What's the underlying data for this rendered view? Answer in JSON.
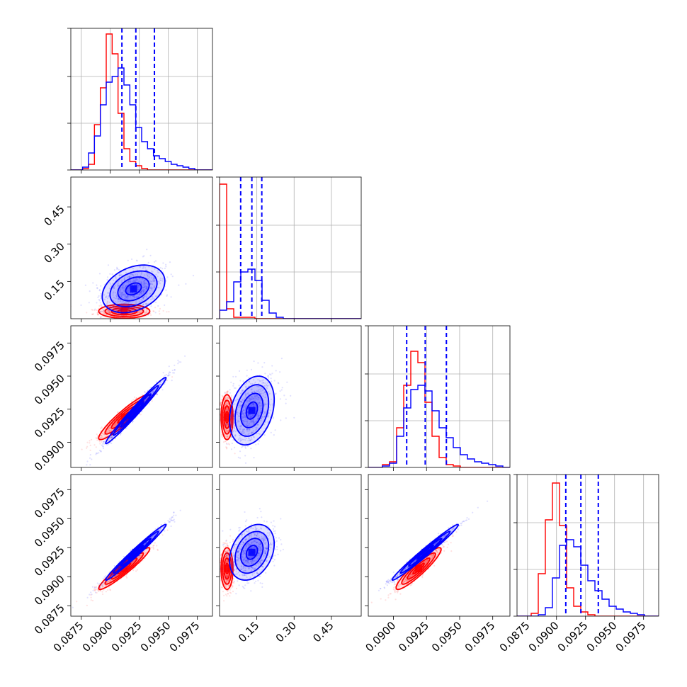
{
  "chart_data": {
    "type": "corner",
    "title": "",
    "grid": true,
    "layout": "4x4 lower-triangular corner plot",
    "colors": {
      "blue": "#0000ff",
      "red": "#ff0000",
      "grid": "#b0b0b0",
      "frame": "#000000"
    },
    "params": [
      {
        "range": [
          0.0866,
          0.0988
        ],
        "ticks": [
          0.0875,
          0.09,
          0.0925,
          0.095,
          0.0975
        ],
        "tick_labels": [
          "0.0875",
          "0.0900",
          "0.0925",
          "0.0950",
          "0.0975"
        ]
      },
      {
        "range": [
          0.0,
          0.57
        ],
        "ticks": [
          0.15,
          0.3,
          0.45
        ],
        "tick_labels": [
          "0.15",
          "0.30",
          "0.45"
        ]
      },
      {
        "range": [
          0.0881,
          0.0988
        ],
        "ticks": [
          0.09,
          0.0925,
          0.095,
          0.0975
        ],
        "tick_labels": [
          "0.0900",
          "0.0925",
          "0.0950",
          "0.0975"
        ]
      },
      {
        "range": [
          0.0866,
          0.0988
        ],
        "ticks": [
          0.0875,
          0.09,
          0.0925,
          0.095,
          0.0975
        ],
        "tick_labels": [
          "0.0875",
          "0.0900",
          "0.0925",
          "0.0950",
          "0.0975"
        ]
      }
    ],
    "histograms": [
      {
        "blue": {
          "edges_range": [
            0.0866,
            0.0988
          ],
          "counts": [
            0,
            0,
            0.02,
            0.12,
            0.24,
            0.46,
            0.62,
            0.66,
            0.72,
            0.6,
            0.46,
            0.3,
            0.2,
            0.15,
            0.1,
            0.08,
            0.06,
            0.04,
            0.03,
            0.02,
            0.01,
            0,
            0,
            0
          ]
        },
        "red": {
          "edges_range": [
            0.0866,
            0.0988
          ],
          "counts": [
            0,
            0,
            0.01,
            0.04,
            0.32,
            0.58,
            0.96,
            0.82,
            0.4,
            0.15,
            0.06,
            0.03,
            0.01,
            0,
            0,
            0,
            0,
            0,
            0,
            0,
            0,
            0,
            0,
            0
          ]
        },
        "quantiles": [
          0.091,
          0.0922,
          0.0938
        ]
      },
      {
        "blue": {
          "edges_range": [
            0.0,
            0.57
          ],
          "counts": [
            0.06,
            0.12,
            0.26,
            0.33,
            0.35,
            0.27,
            0.13,
            0.04,
            0.01,
            0,
            0,
            0,
            0,
            0,
            0,
            0,
            0,
            0,
            0,
            0
          ]
        },
        "red": {
          "edges_range": [
            0.0,
            0.57
          ],
          "counts": [
            0.95,
            0.07,
            0.01,
            0.01,
            0.01,
            0,
            0,
            0,
            0,
            0,
            0,
            0,
            0,
            0,
            0,
            0,
            0,
            0,
            0,
            0
          ]
        },
        "quantiles": [
          0.085,
          0.13,
          0.17
        ]
      },
      {
        "blue": {
          "edges_range": [
            0.0881,
            0.0988
          ],
          "counts": [
            0,
            0,
            0.01,
            0.03,
            0.22,
            0.42,
            0.55,
            0.58,
            0.54,
            0.4,
            0.28,
            0.21,
            0.14,
            0.09,
            0.06,
            0.04,
            0.03,
            0.02,
            0.01,
            0
          ]
        },
        "red": {
          "edges_range": [
            0.0881,
            0.0988
          ],
          "counts": [
            0,
            0,
            0.02,
            0.04,
            0.28,
            0.58,
            0.82,
            0.74,
            0.46,
            0.22,
            0.07,
            0.02,
            0.01,
            0,
            0,
            0,
            0,
            0,
            0,
            0
          ]
        },
        "quantiles": [
          0.091,
          0.0924,
          0.094
        ]
      },
      {
        "blue": {
          "edges_range": [
            0.0866,
            0.0988
          ],
          "counts": [
            0,
            0,
            0,
            0.01,
            0.06,
            0.27,
            0.5,
            0.54,
            0.49,
            0.36,
            0.25,
            0.18,
            0.12,
            0.07,
            0.05,
            0.03,
            0.02,
            0.01,
            0,
            0
          ]
        },
        "red": {
          "edges_range": [
            0.0866,
            0.0988
          ],
          "counts": [
            0,
            0,
            0.02,
            0.3,
            0.68,
            0.94,
            0.64,
            0.2,
            0.07,
            0.03,
            0.01,
            0,
            0,
            0,
            0,
            0,
            0,
            0,
            0,
            0
          ]
        },
        "quantiles": [
          0.0908,
          0.0921,
          0.0936
        ]
      }
    ],
    "scatter_panels": [
      {
        "row": 1,
        "col": 0,
        "blue": {
          "center": [
            0.092,
            0.12
          ],
          "sigma": [
            0.00135,
            0.048
          ],
          "rho": 0.32,
          "contour_levels": [
            0.5,
            1.0,
            1.5,
            2.0
          ]
        },
        "red": {
          "center": [
            0.0912,
            0.03
          ],
          "sigma": [
            0.0011,
            0.014
          ],
          "rho": 0.0,
          "contour_levels": [
            0.5,
            1.0,
            1.5,
            2.0
          ]
        }
      },
      {
        "row": 2,
        "col": 0,
        "blue": {
          "center": [
            0.0922,
            0.0924
          ],
          "sigma": [
            0.0013,
            0.00125
          ],
          "rho": 0.985,
          "contour_levels": [
            0.5,
            1.0,
            1.5,
            2.0
          ]
        },
        "red": {
          "center": [
            0.0912,
            0.0919
          ],
          "sigma": [
            0.0011,
            0.00085
          ],
          "rho": 0.93,
          "contour_levels": [
            0.5,
            1.0,
            1.5,
            2.0
          ]
        }
      },
      {
        "row": 3,
        "col": 0,
        "blue": {
          "center": [
            0.0922,
            0.0921
          ],
          "sigma": [
            0.0013,
            0.0012
          ],
          "rho": 0.985,
          "contour_levels": [
            0.5,
            1.0,
            1.5,
            2.0
          ]
        },
        "red": {
          "center": [
            0.0912,
            0.0907
          ],
          "sigma": [
            0.0011,
            0.0009
          ],
          "rho": 0.95,
          "contour_levels": [
            0.5,
            1.0,
            1.5,
            2.0
          ]
        }
      },
      {
        "row": 2,
        "col": 1,
        "blue": {
          "center": [
            0.13,
            0.0924
          ],
          "sigma": [
            0.045,
            0.0013
          ],
          "rho": 0.3,
          "contour_levels": [
            0.5,
            1.0,
            1.5,
            2.0
          ]
        },
        "red": {
          "center": [
            0.03,
            0.0919
          ],
          "sigma": [
            0.012,
            0.00085
          ],
          "rho": 0.0,
          "contour_levels": [
            0.5,
            1.0,
            1.5,
            2.0
          ]
        }
      },
      {
        "row": 3,
        "col": 1,
        "blue": {
          "center": [
            0.13,
            0.0921
          ],
          "sigma": [
            0.045,
            0.0012
          ],
          "rho": 0.3,
          "contour_levels": [
            0.5,
            1.0,
            1.5,
            2.0
          ]
        },
        "red": {
          "center": [
            0.03,
            0.0907
          ],
          "sigma": [
            0.012,
            0.0009
          ],
          "rho": 0.0,
          "contour_levels": [
            0.5,
            1.0,
            1.5,
            2.0
          ]
        }
      },
      {
        "row": 3,
        "col": 2,
        "blue": {
          "center": [
            0.0924,
            0.0921
          ],
          "sigma": [
            0.00125,
            0.0012
          ],
          "rho": 0.985,
          "contour_levels": [
            0.5,
            1.0,
            1.5,
            2.0
          ]
        },
        "red": {
          "center": [
            0.0919,
            0.0907
          ],
          "sigma": [
            0.00085,
            0.0009
          ],
          "rho": 0.92,
          "contour_levels": [
            0.5,
            1.0,
            1.5,
            2.0
          ]
        }
      }
    ]
  }
}
